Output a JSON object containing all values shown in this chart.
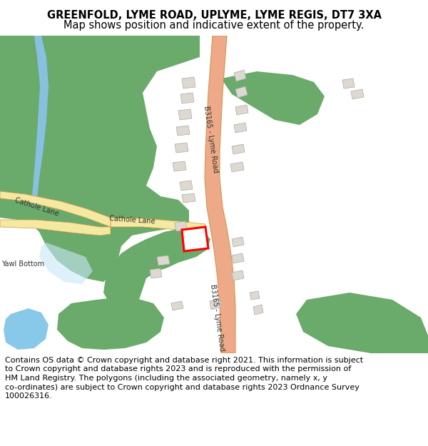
{
  "title_line1": "GREENFOLD, LYME ROAD, UPLYME, LYME REGIS, DT7 3XA",
  "title_line2": "Map shows position and indicative extent of the property.",
  "footer_lines": [
    "Contains OS data © Crown copyright and database right 2021. This information is subject",
    "to Crown copyright and database rights 2023 and is reproduced with the permission of",
    "HM Land Registry. The polygons (including the associated geometry, namely x, y",
    "co-ordinates) are subject to Crown copyright and database rights 2023 Ordnance Survey",
    "100026316."
  ],
  "bg_color": "#ffffff",
  "map_bg": "#f8f8f6",
  "road_color_main": "#eeaa88",
  "road_color_lane": "#f5e8a0",
  "road_outline": "#d4944a",
  "green_color": "#6aaa6a",
  "blue_color": "#88c8e8",
  "blue_stream": "#88c0e0",
  "building_color": "#ddd8d0",
  "building_edge": "#aaaaaa",
  "highlight_color": "#ff0000",
  "title_fontsize": 10.5,
  "footer_fontsize": 8.0,
  "label_fontsize": 7.0,
  "label_color": "#333333"
}
